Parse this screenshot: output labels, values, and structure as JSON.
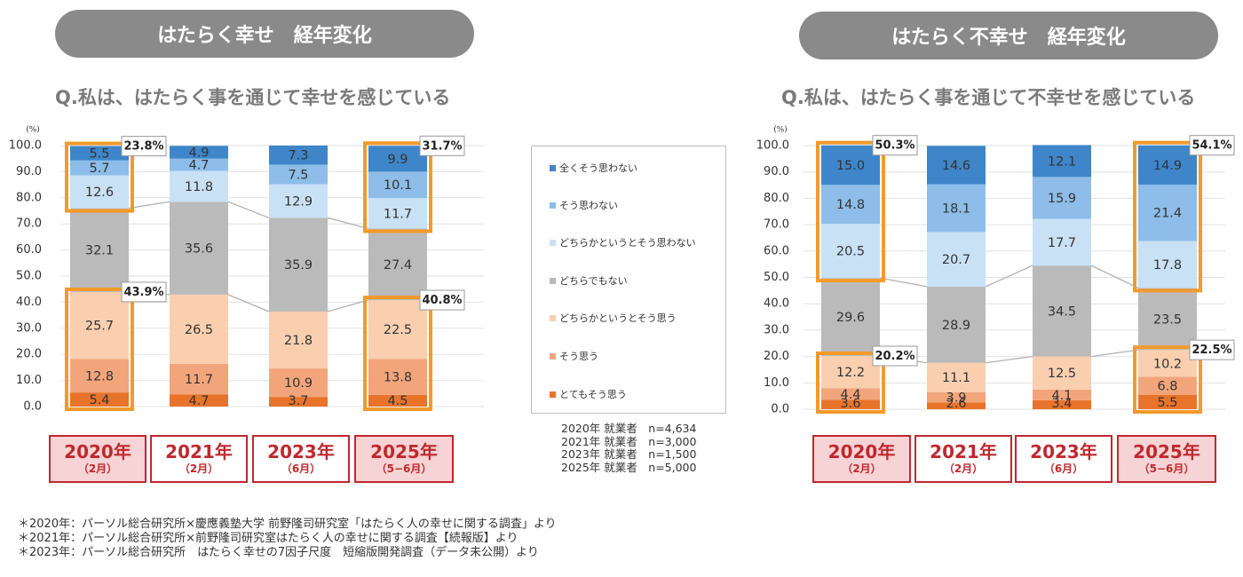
{
  "left": {
    "title": "はたらく幸せ　経年変化",
    "question": "Q.私は、はたらく事を通じて幸せを感じている"
  },
  "right": {
    "title": "はたらく不幸せ　経年変化",
    "question": "Q.私は、はたらく事を通じて不幸せを感じている"
  },
  "colors": {
    "c1": "#3e86c9",
    "c2": "#8dbde8",
    "c3": "#c9e1f5",
    "c4": "#bababa",
    "c5": "#f9cfb0",
    "c6": "#f2a57b",
    "c7": "#e8732b",
    "highlight": "#f39a2a",
    "year_border": "#c0282e",
    "year_fill": "#f6d3d4"
  },
  "legend": [
    "全くそう思わない",
    "そう思わない",
    "どちらかというとそう思わない",
    "どちらでもない",
    "どちらかというとそう思う",
    "そう思う",
    "とてもそう思う"
  ],
  "samples": [
    "2020年 就業者　n=4,634",
    "2021年 就業者　n=3,000",
    "2023年 就業者　n=1,500",
    "2025年 就業者　n=5,000"
  ],
  "years_left": [
    {
      "year": "2020年",
      "sub": "（2月）"
    },
    {
      "year": "2021年",
      "sub": "（2月）"
    },
    {
      "year": "2023年",
      "sub": "（6月）"
    },
    {
      "year": "2025年",
      "sub": "（5−6月）"
    }
  ],
  "years_right": [
    {
      "year": "2020年",
      "sub": "（2月）"
    },
    {
      "year": "2021年",
      "sub": "（2月）"
    },
    {
      "year": "2023年",
      "sub": "（6月）"
    },
    {
      "year": "2025年",
      "sub": "（5−6月）"
    }
  ],
  "notes": [
    "＊2020年：パーソル総合研究所×慶應義塾大学 前野隆司研究室「はたらく人の幸せに関する調査」より",
    "＊2021年：パーソル総合研究所×前野隆司研究室はたらく人の幸せに関する調査【続報版】より",
    "＊2023年：パーソル総合研究所　はたらく幸せの7因子尺度　短縮版開発調査（データ未公開）より"
  ],
  "chart_data": [
    {
      "type": "bar",
      "stacked": true,
      "title": "はたらく幸せ　経年変化",
      "yunit": "(%)",
      "ylim": [
        0,
        100
      ],
      "yticks": [
        "0.0",
        "10.0",
        "20.0",
        "30.0",
        "40.0",
        "50.0",
        "60.0",
        "70.0",
        "80.0",
        "90.0",
        "100.0"
      ],
      "categories": [
        "2020年（2月）",
        "2021年（2月）",
        "2023年（6月）",
        "2025年（5−6月）"
      ],
      "series": [
        {
          "name": "とてもそう思う",
          "values": [
            5.4,
            4.7,
            3.7,
            4.5
          ]
        },
        {
          "name": "そう思う",
          "values": [
            12.8,
            11.7,
            10.9,
            13.8
          ]
        },
        {
          "name": "どちらかというとそう思う",
          "values": [
            25.7,
            26.5,
            21.8,
            22.5
          ]
        },
        {
          "name": "どちらでもない",
          "values": [
            32.1,
            35.6,
            35.9,
            27.4
          ]
        },
        {
          "name": "どちらかというとそう思わない",
          "values": [
            12.6,
            11.8,
            12.9,
            11.7
          ]
        },
        {
          "name": "そう思わない",
          "values": [
            5.7,
            4.7,
            7.5,
            10.1
          ]
        },
        {
          "name": "全くそう思わない",
          "values": [
            5.5,
            4.9,
            7.3,
            9.9
          ]
        }
      ],
      "callouts": [
        {
          "bar": 0,
          "group": "top",
          "label": "23.8%"
        },
        {
          "bar": 0,
          "group": "bottom",
          "label": "43.9%"
        },
        {
          "bar": 3,
          "group": "top",
          "label": "31.7%"
        },
        {
          "bar": 3,
          "group": "bottom",
          "label": "40.8%"
        }
      ],
      "highlighted_bars": [
        0,
        3
      ]
    },
    {
      "type": "bar",
      "stacked": true,
      "title": "はたらく不幸せ　経年変化",
      "yunit": "(%)",
      "ylim": [
        0,
        100
      ],
      "yticks": [
        "0.0",
        "10.0",
        "20.0",
        "30.0",
        "40.0",
        "50.0",
        "60.0",
        "70.0",
        "80.0",
        "90.0",
        "100.0"
      ],
      "categories": [
        "2020年（2月）",
        "2021年（2月）",
        "2023年（6月）",
        "2025年（5−6月）"
      ],
      "series": [
        {
          "name": "とてもそう思う",
          "values": [
            3.6,
            2.6,
            3.4,
            5.5
          ]
        },
        {
          "name": "そう思う",
          "values": [
            4.4,
            3.9,
            4.1,
            6.8
          ]
        },
        {
          "name": "どちらかというとそう思う",
          "values": [
            12.2,
            11.1,
            12.5,
            10.2
          ]
        },
        {
          "name": "どちらでもない",
          "values": [
            29.6,
            28.9,
            34.5,
            23.5
          ]
        },
        {
          "name": "どちらかというとそう思わない",
          "values": [
            20.5,
            20.7,
            17.7,
            17.8
          ]
        },
        {
          "name": "そう思わない",
          "values": [
            14.8,
            18.1,
            15.9,
            21.4
          ]
        },
        {
          "name": "全くそう思わない",
          "values": [
            15.0,
            14.6,
            12.1,
            14.9
          ]
        }
      ],
      "callouts": [
        {
          "bar": 0,
          "group": "top",
          "label": "50.3%"
        },
        {
          "bar": 0,
          "group": "bottom",
          "label": "20.2%"
        },
        {
          "bar": 3,
          "group": "top",
          "label": "54.1%"
        },
        {
          "bar": 3,
          "group": "bottom",
          "label": "22.5%"
        }
      ],
      "highlighted_bars": [
        0,
        3
      ]
    }
  ]
}
